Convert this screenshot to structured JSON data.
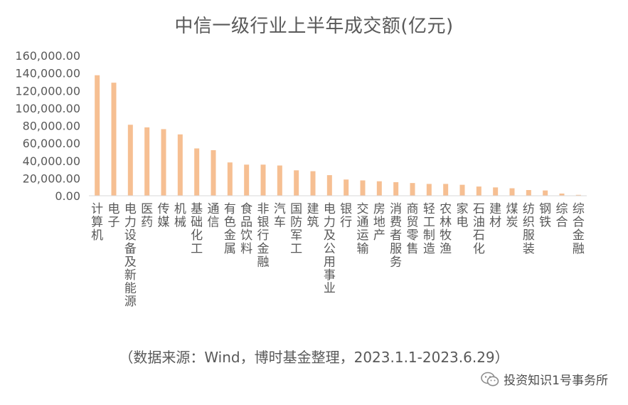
{
  "title": "中信一级行业上半年成交额(亿元)",
  "source": "（数据来源：Wind，博时基金整理，2023.1.1-2023.6.29）",
  "watermark": "投资知识1号事务所",
  "colors": {
    "bar": "#f6bf92",
    "text": "#595959",
    "axis": "#d9d9d9"
  },
  "icons": {
    "watermark_icon": "wechat-icon"
  },
  "chart_data": {
    "type": "bar",
    "title": "中信一级行业上半年成交额(亿元)",
    "xlabel": "",
    "ylabel": "",
    "ylim": [
      0,
      160000
    ],
    "ytick_labels": [
      "0.00",
      "20,000.00",
      "40,000.00",
      "60,000.00",
      "80,000.00",
      "100,000.00",
      "120,000.00",
      "140,000.00",
      "160,000.00"
    ],
    "grid": false,
    "legend": "none",
    "categories": [
      "计算机",
      "电子",
      "电力设备及新能源",
      "医药",
      "传媒",
      "机械",
      "基础化工",
      "通信",
      "有色金属",
      "食品饮料",
      "非银行金融",
      "汽车",
      "国防军工",
      "建筑",
      "电力及公用事业",
      "银行",
      "交通运输",
      "房地产",
      "消费者服务",
      "商贸零售",
      "轻工制造",
      "农林牧渔",
      "家电",
      "石油石化",
      "建材",
      "煤炭",
      "纺织服装",
      "钢铁",
      "综合",
      "综合金融"
    ],
    "values": [
      137500,
      129000,
      81000,
      78000,
      76000,
      70000,
      54000,
      52000,
      38000,
      35500,
      35500,
      34500,
      29000,
      28000,
      23500,
      18500,
      17500,
      16500,
      15500,
      14500,
      13500,
      13500,
      12500,
      10500,
      9500,
      8500,
      6500,
      6000,
      2500,
      1000
    ]
  }
}
